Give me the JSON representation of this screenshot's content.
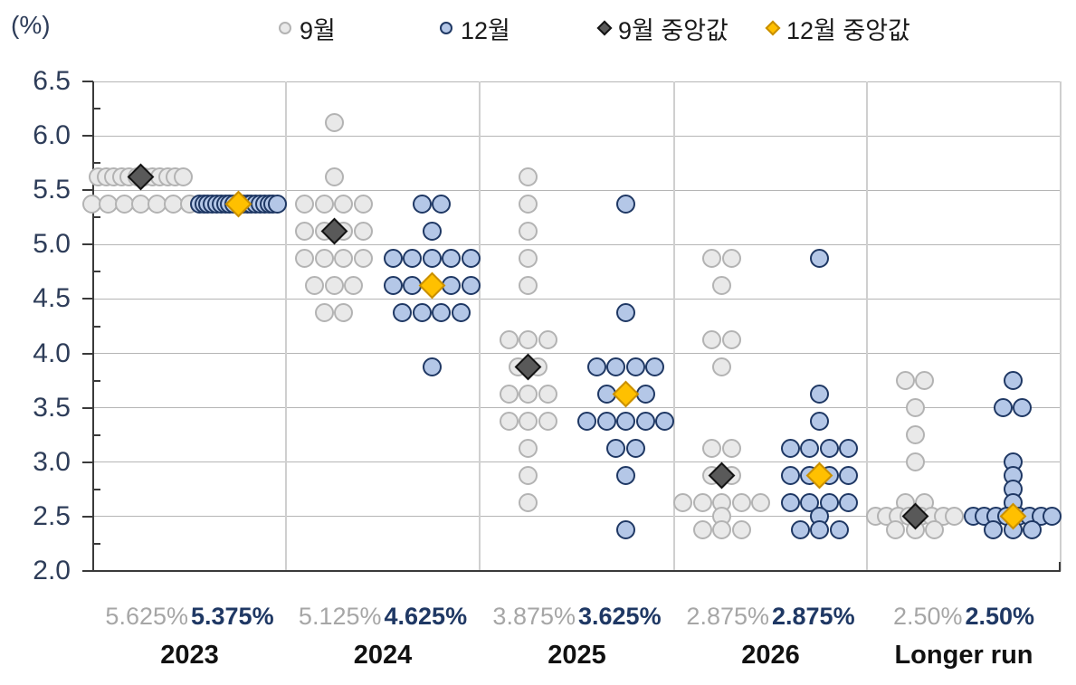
{
  "percent_label": "(%)",
  "legend": {
    "sep_label": "9월",
    "dec_label": "12월",
    "sep_median_label": "9월 중앙값",
    "dec_median_label": "12월 중앙값"
  },
  "colors": {
    "sep_dot_fill": "#e9e9e9",
    "sep_dot_border": "#b3b3b3",
    "dec_dot_fill": "#b4c7e7",
    "dec_dot_border": "#1f3864",
    "sep_median_diamond": "#595959",
    "dec_median_diamond": "#ffc000",
    "sep_value_text": "#a6a6a6",
    "dec_value_text": "#1f3864",
    "axis_text": "#2e3d59"
  },
  "chart_data": {
    "type": "scatter",
    "subtype": "fomc-dot-plot",
    "y_axis": {
      "unit": "(%)",
      "min": 2.0,
      "max": 6.5,
      "tick_step": 0.5,
      "tick_labels": [
        "6.5",
        "6.0",
        "5.5",
        "5.0",
        "4.5",
        "4.0",
        "3.5",
        "3.0",
        "2.5",
        "2.0"
      ]
    },
    "legend_entries": [
      "9월",
      "12월",
      "9월 중앙값",
      "12월 중앙값"
    ],
    "grid": true,
    "columns": [
      {
        "label": "2023",
        "sep_median": 5.625,
        "dec_median": 5.375,
        "sep_median_label": "5.625%",
        "dec_median_label": "5.375%",
        "sep_dots": [
          [
            5.625,
            12
          ],
          [
            5.375,
            7
          ]
        ],
        "dec_dots": [
          [
            5.375,
            19
          ]
        ]
      },
      {
        "label": "2024",
        "sep_median": 5.125,
        "dec_median": 4.625,
        "sep_median_label": "5.125%",
        "dec_median_label": "4.625%",
        "sep_dots": [
          [
            6.125,
            1
          ],
          [
            5.625,
            1
          ],
          [
            5.375,
            4
          ],
          [
            5.125,
            4
          ],
          [
            4.875,
            4
          ],
          [
            4.625,
            3
          ],
          [
            4.375,
            2
          ]
        ],
        "dec_dots": [
          [
            5.375,
            2
          ],
          [
            5.125,
            1
          ],
          [
            4.875,
            5
          ],
          [
            4.625,
            5
          ],
          [
            4.375,
            4
          ],
          [
            3.875,
            1
          ]
        ]
      },
      {
        "label": "2025",
        "sep_median": 3.875,
        "dec_median": 3.625,
        "sep_median_label": "3.875%",
        "dec_median_label": "3.625%",
        "sep_dots": [
          [
            5.625,
            1
          ],
          [
            5.375,
            1
          ],
          [
            5.125,
            1
          ],
          [
            4.875,
            1
          ],
          [
            4.625,
            1
          ],
          [
            4.125,
            3
          ],
          [
            3.875,
            2
          ],
          [
            3.625,
            3
          ],
          [
            3.375,
            3
          ],
          [
            3.125,
            1
          ],
          [
            2.875,
            1
          ],
          [
            2.625,
            1
          ]
        ],
        "dec_dots": [
          [
            5.375,
            1
          ],
          [
            4.375,
            1
          ],
          [
            3.875,
            4
          ],
          [
            3.625,
            3
          ],
          [
            3.375,
            5
          ],
          [
            3.125,
            2
          ],
          [
            2.875,
            1
          ],
          [
            2.375,
            1
          ]
        ]
      },
      {
        "label": "2026",
        "sep_median": 2.875,
        "dec_median": 2.875,
        "sep_median_label": "2.875%",
        "dec_median_label": "2.875%",
        "sep_dots": [
          [
            4.875,
            2
          ],
          [
            4.625,
            1
          ],
          [
            4.125,
            2
          ],
          [
            3.875,
            1
          ],
          [
            3.125,
            2
          ],
          [
            2.875,
            2
          ],
          [
            2.625,
            5
          ],
          [
            2.5,
            1
          ],
          [
            2.375,
            3
          ]
        ],
        "dec_dots": [
          [
            4.875,
            1
          ],
          [
            3.625,
            1
          ],
          [
            3.375,
            1
          ],
          [
            3.125,
            4
          ],
          [
            2.875,
            4
          ],
          [
            2.625,
            4
          ],
          [
            2.5,
            1
          ],
          [
            2.375,
            3
          ]
        ]
      },
      {
        "label": "Longer run",
        "sep_median": 2.5,
        "dec_median": 2.5,
        "sep_median_label": "2.50%",
        "dec_median_label": "2.50%",
        "sep_dots": [
          [
            3.75,
            2
          ],
          [
            3.5,
            1
          ],
          [
            3.25,
            1
          ],
          [
            3.0,
            1
          ],
          [
            2.625,
            2
          ],
          [
            2.5,
            8
          ],
          [
            2.375,
            3
          ]
        ],
        "dec_dots": [
          [
            3.75,
            1
          ],
          [
            3.5,
            2
          ],
          [
            3.0,
            1
          ],
          [
            2.875,
            1
          ],
          [
            2.75,
            1
          ],
          [
            2.625,
            1
          ],
          [
            2.5,
            8
          ],
          [
            2.375,
            3
          ]
        ]
      }
    ]
  }
}
